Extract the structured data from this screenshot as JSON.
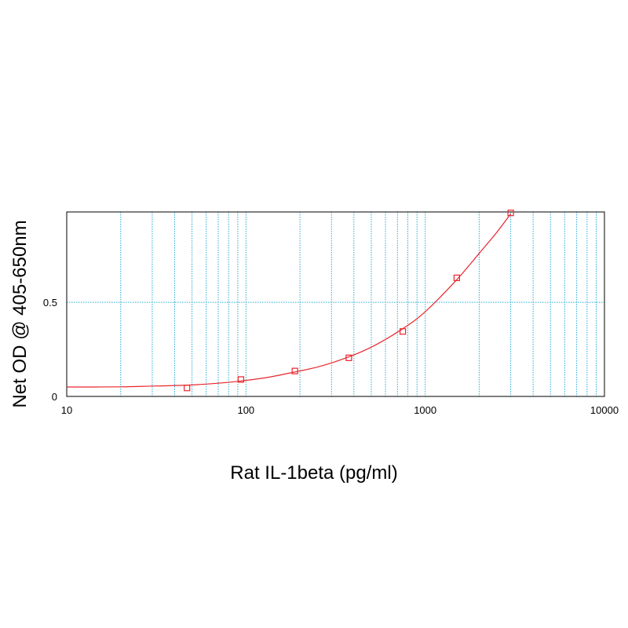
{
  "chart_data": {
    "type": "scatter",
    "title": "",
    "xlabel": "Rat IL-1beta (pg/ml)",
    "ylabel": "Net OD @ 405-650nm",
    "x_scale": "log",
    "xlim": [
      10,
      10000
    ],
    "ylim": [
      0,
      0.98
    ],
    "x_ticks": [
      10,
      100,
      1000,
      10000
    ],
    "x_tick_labels": [
      "10",
      "100",
      "1000",
      "10000"
    ],
    "y_ticks": [
      0,
      0.5
    ],
    "y_tick_labels": [
      "0",
      "0.5"
    ],
    "grid": true,
    "grid_color": "#2aa9d6",
    "series": [
      {
        "marker": "square-open",
        "color": "#e8262c",
        "x": [
          46.875,
          93.75,
          187.5,
          375,
          750,
          1500,
          3000
        ],
        "y": [
          0.045,
          0.09,
          0.135,
          0.205,
          0.345,
          0.63,
          0.975
        ]
      }
    ],
    "fit_curve": {
      "color": "#e8262c",
      "x": [
        10,
        20,
        30,
        47,
        70,
        94,
        130,
        188,
        260,
        375,
        520,
        750,
        1000,
        1500,
        2000,
        2500,
        3000
      ],
      "y": [
        0.05,
        0.051,
        0.055,
        0.06,
        0.07,
        0.082,
        0.1,
        0.13,
        0.16,
        0.21,
        0.27,
        0.36,
        0.45,
        0.62,
        0.76,
        0.87,
        0.97
      ]
    }
  }
}
